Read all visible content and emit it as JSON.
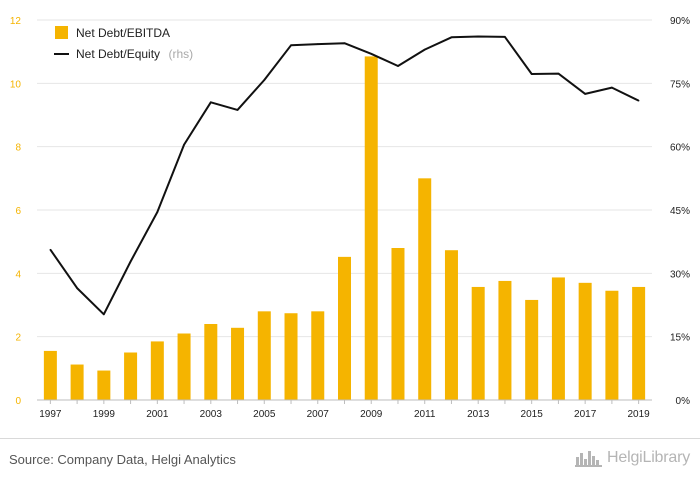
{
  "chart_data": {
    "type": "bar+line",
    "x": [
      "1997",
      "1998",
      "1999",
      "2000",
      "2001",
      "2002",
      "2003",
      "2004",
      "2005",
      "2006",
      "2007",
      "2008",
      "2009",
      "2010",
      "2011",
      "2012",
      "2013",
      "2014",
      "2015",
      "2016",
      "2017",
      "2018",
      "2019"
    ],
    "x_tick_labels": [
      "1997",
      "1999",
      "2001",
      "2003",
      "2005",
      "2007",
      "2009",
      "2011",
      "2013",
      "2015",
      "2017",
      "2019"
    ],
    "series": [
      {
        "name": "Net Debt/EBITDA",
        "type": "bar",
        "axis": "left",
        "color": "#f5b400",
        "values": [
          1.55,
          1.12,
          0.93,
          1.5,
          1.85,
          2.1,
          2.4,
          2.28,
          2.8,
          2.74,
          2.8,
          4.52,
          10.85,
          4.8,
          7.0,
          4.73,
          3.57,
          3.76,
          3.16,
          3.87,
          3.7,
          3.45,
          3.57
        ]
      },
      {
        "name": "Net Debt/Equity",
        "name_suffix": "(rhs)",
        "type": "line",
        "axis": "right",
        "color": "#111111",
        "values": [
          35.6,
          26.5,
          20.3,
          32.8,
          44.5,
          60.5,
          70.5,
          68.7,
          75.8,
          84.0,
          84.3,
          84.5,
          82.0,
          79.1,
          83.0,
          85.9,
          86.1,
          86.0,
          77.2,
          77.3,
          72.5,
          74.0,
          70.9
        ]
      }
    ],
    "y_left": {
      "ylim": [
        0,
        12
      ],
      "ticks": [
        "0",
        "2",
        "4",
        "6",
        "8",
        "10",
        "12"
      ],
      "tick_color": "#f5b400"
    },
    "y_right": {
      "ylim": [
        0,
        90
      ],
      "ticks": [
        "0%",
        "15%",
        "30%",
        "45%",
        "60%",
        "75%",
        "90%"
      ],
      "tick_color": "#222222"
    },
    "grid": true,
    "legend_position": "top-left"
  },
  "footer": {
    "source": "Source: Company Data, Helgi Analytics",
    "logo_text": "HelgiLibrary",
    "logo_icon": "city-skyline-icon"
  }
}
